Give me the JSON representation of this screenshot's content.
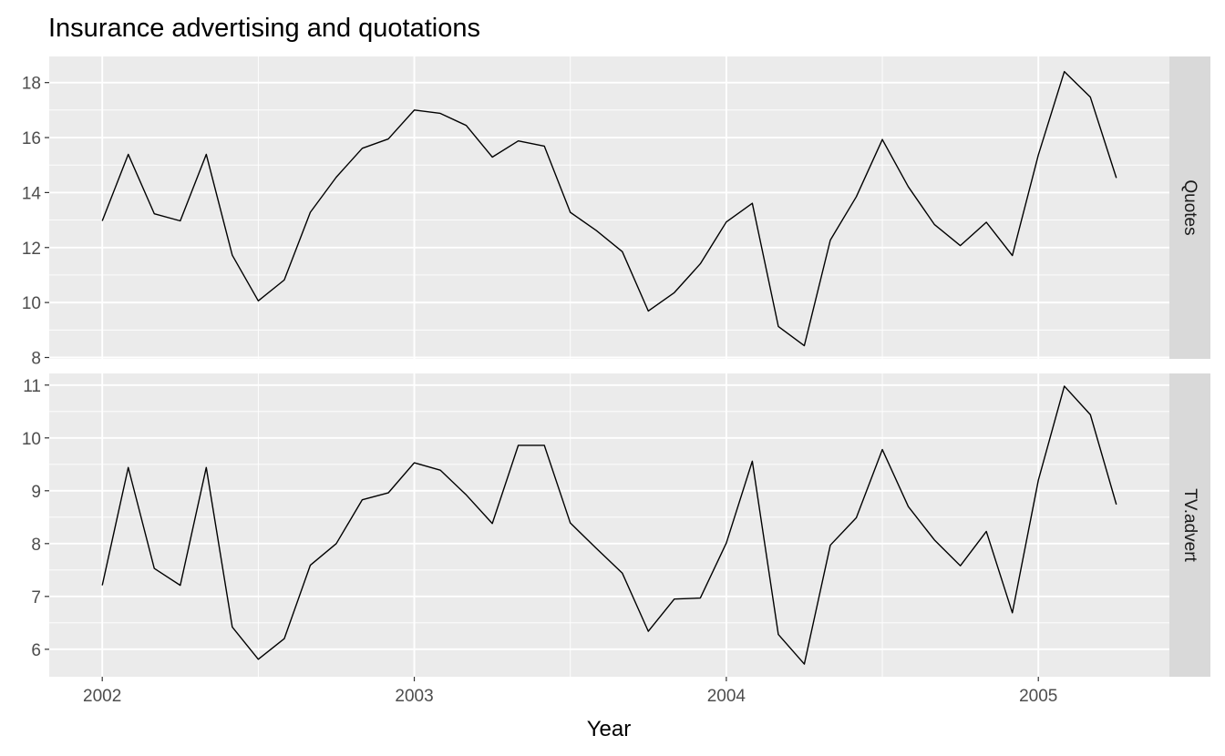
{
  "chart_data": {
    "type": "line",
    "title": "Insurance advertising and quotations",
    "xlabel": "Year",
    "ylabel": "",
    "x_axis": {
      "range": [
        2001.83,
        2005.42
      ],
      "ticks": [
        2002,
        2003,
        2004,
        2005
      ],
      "tick_labels": [
        "2002",
        "2003",
        "2004",
        "2005"
      ]
    },
    "x": [
      2002.0,
      2002.0833,
      2002.1667,
      2002.25,
      2002.3333,
      2002.4167,
      2002.5,
      2002.5833,
      2002.6667,
      2002.75,
      2002.8333,
      2002.9167,
      2003.0,
      2003.0833,
      2003.1667,
      2003.25,
      2003.3333,
      2003.4167,
      2003.5,
      2003.5833,
      2003.6667,
      2003.75,
      2003.8333,
      2003.9167,
      2004.0,
      2004.0833,
      2004.1667,
      2004.25,
      2004.3333,
      2004.4167,
      2004.5,
      2004.5833,
      2004.6667,
      2004.75,
      2004.8333,
      2004.9167,
      2005.0,
      2005.0833,
      2005.1667,
      2005.25
    ],
    "facet_layout": "rows",
    "grid": true,
    "facets": [
      {
        "strip_label": "Quotes",
        "ylim": [
          7.95,
          18.95
        ],
        "yticks": [
          8,
          10,
          12,
          14,
          16,
          18
        ],
        "ytick_labels": [
          "8",
          "10",
          "12",
          "14",
          "16",
          "18"
        ],
        "values": [
          12.97,
          15.39,
          13.23,
          12.97,
          15.39,
          11.72,
          10.06,
          10.82,
          13.28,
          14.56,
          15.61,
          15.95,
          17.0,
          16.88,
          16.44,
          15.29,
          15.88,
          15.69,
          13.28,
          12.62,
          11.85,
          9.69,
          10.36,
          11.41,
          12.93,
          13.61,
          9.13,
          8.43,
          12.27,
          13.85,
          15.93,
          14.21,
          12.84,
          12.07,
          12.92,
          11.71,
          15.37,
          18.4,
          17.47,
          14.53
        ]
      },
      {
        "strip_label": "TV.advert",
        "ylim": [
          5.48,
          11.22
        ],
        "yticks": [
          6,
          7,
          8,
          9,
          10,
          11
        ],
        "ytick_labels": [
          "6",
          "7",
          "8",
          "9",
          "10",
          "11"
        ],
        "values": [
          7.21,
          9.44,
          7.53,
          7.21,
          9.44,
          6.42,
          5.81,
          6.2,
          7.59,
          8.0,
          8.83,
          8.96,
          9.53,
          9.39,
          8.92,
          8.38,
          9.86,
          9.86,
          8.39,
          7.91,
          7.44,
          6.34,
          6.95,
          6.97,
          8.01,
          9.56,
          6.28,
          5.72,
          7.97,
          8.49,
          9.78,
          8.7,
          8.07,
          7.58,
          8.23,
          6.69,
          9.2,
          10.98,
          10.44,
          8.74
        ]
      }
    ],
    "colors": {
      "panel_bg": "#EBEBEB",
      "grid_major": "#FFFFFF",
      "strip_bg": "#D9D9D9",
      "line": "#000000",
      "tick": "#333333"
    }
  }
}
